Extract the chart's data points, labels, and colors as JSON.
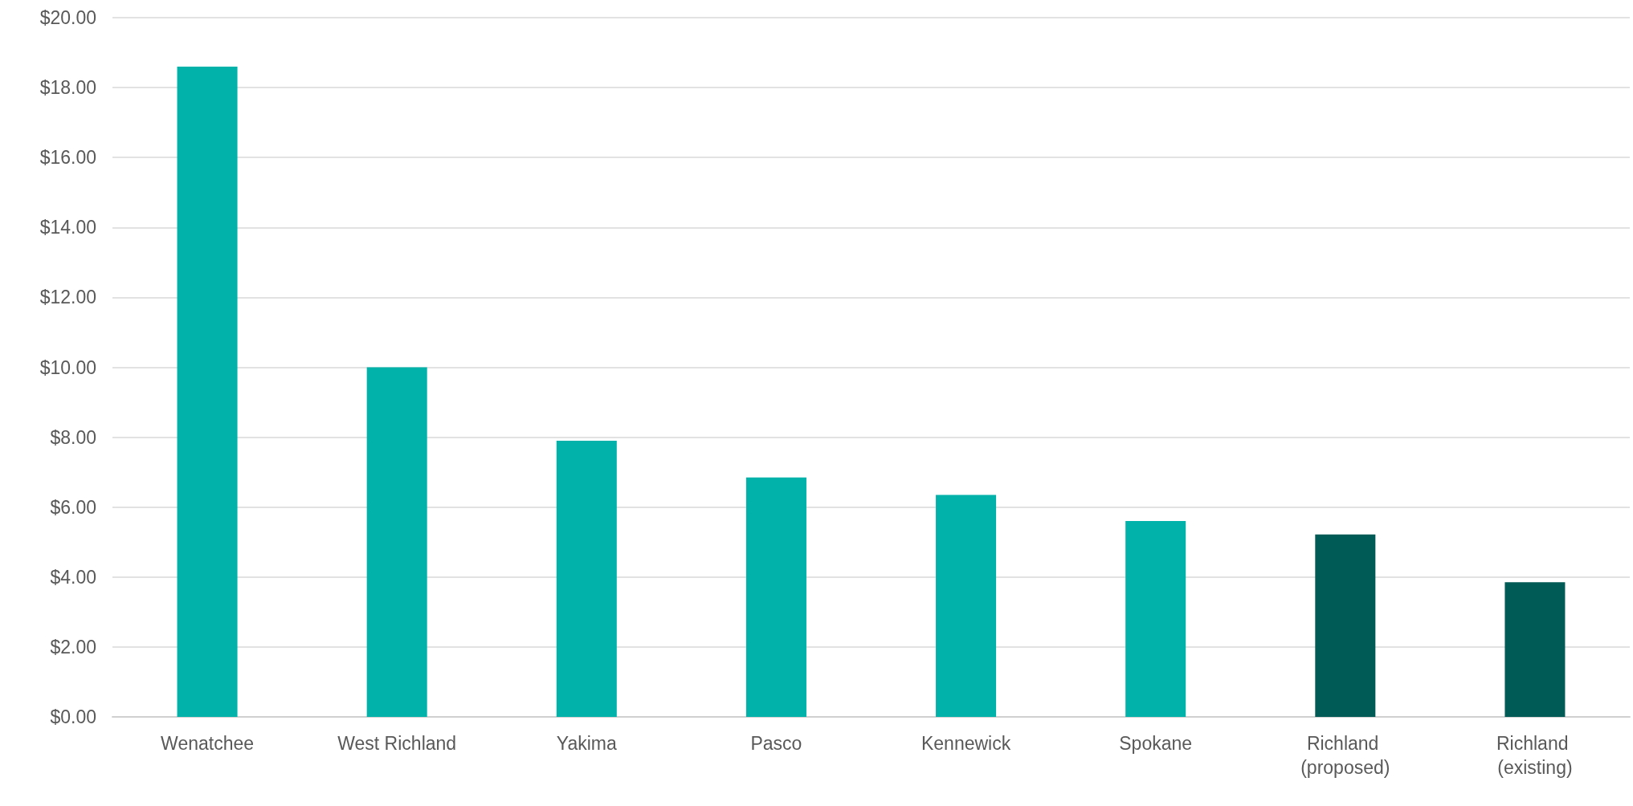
{
  "chart_data": {
    "type": "bar",
    "categories": [
      "Wenatchee",
      "West Richland",
      "Yakima",
      "Pasco",
      "Kennewick",
      "Spokane",
      "Richland (proposed)",
      "Richland (existing)"
    ],
    "values": [
      18.6,
      10.0,
      7.9,
      6.85,
      6.35,
      5.6,
      5.22,
      3.85
    ],
    "colors": [
      "#00b2a9",
      "#00b2a9",
      "#00b2a9",
      "#00b2a9",
      "#00b2a9",
      "#00b2a9",
      "#005a55",
      "#005a55"
    ],
    "ylim": [
      0,
      20
    ],
    "yticks": [
      {
        "value": 0,
        "label": "$0.00"
      },
      {
        "value": 2,
        "label": "$2.00"
      },
      {
        "value": 4,
        "label": "$4.00"
      },
      {
        "value": 6,
        "label": "$6.00"
      },
      {
        "value": 8,
        "label": "$8.00"
      },
      {
        "value": 10,
        "label": "$10.00"
      },
      {
        "value": 12,
        "label": "$12.00"
      },
      {
        "value": 14,
        "label": "$14.00"
      },
      {
        "value": 16,
        "label": "$16.00"
      },
      {
        "value": 18,
        "label": "$18.00"
      },
      {
        "value": 20,
        "label": "$20.00"
      }
    ],
    "grid": "y"
  }
}
